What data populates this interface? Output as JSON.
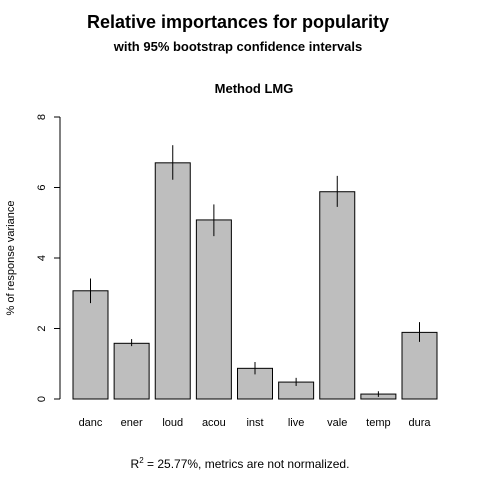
{
  "chart_data": {
    "type": "bar",
    "title": "Relative importances for popularity",
    "subtitle": "with 95% bootstrap confidence intervals",
    "plot_title": "Method LMG",
    "xlabel": "",
    "ylabel": "% of response variance",
    "ylim": [
      0,
      8
    ],
    "yticks": [
      "0",
      "2",
      "4",
      "6",
      "8"
    ],
    "categories": [
      "danc",
      "ener",
      "loud",
      "acou",
      "inst",
      "live",
      "vale",
      "temp",
      "dura"
    ],
    "values": [
      3.07,
      1.58,
      6.7,
      5.08,
      0.87,
      0.48,
      5.88,
      0.14,
      1.89
    ],
    "ci_lower": [
      2.72,
      1.5,
      6.22,
      4.62,
      0.7,
      0.37,
      5.45,
      0.06,
      1.62
    ],
    "ci_upper": [
      3.42,
      1.7,
      7.2,
      5.52,
      1.05,
      0.6,
      6.33,
      0.22,
      2.18
    ],
    "grid": false,
    "legend": "none",
    "bar_color": "#bebebe",
    "footnote": {
      "prefix": "R",
      "superscript": "2",
      "text": " = 25.77%, metrics are not normalized."
    }
  }
}
